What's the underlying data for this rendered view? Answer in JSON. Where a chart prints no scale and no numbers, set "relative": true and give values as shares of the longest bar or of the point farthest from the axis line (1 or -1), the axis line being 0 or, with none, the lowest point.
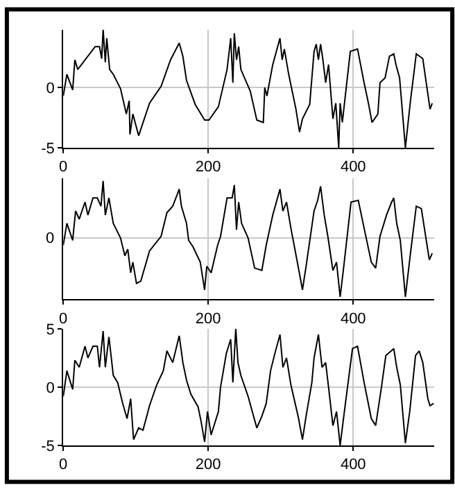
{
  "chart_data": [
    {
      "type": "line",
      "color": "#000000",
      "grid": true,
      "xlim": [
        0,
        512
      ],
      "xticks": [
        0,
        200,
        400
      ],
      "ylim": [
        -5,
        4.8
      ],
      "yticks": [
        -5,
        0
      ],
      "x": [
        0,
        5,
        13,
        16,
        20,
        44,
        50,
        53,
        55,
        58,
        60,
        64,
        69,
        79,
        87,
        91,
        92,
        96,
        104,
        119,
        135,
        148,
        160,
        165,
        170,
        182,
        195,
        201,
        214,
        226,
        231,
        234,
        236,
        239,
        242,
        245,
        258,
        267,
        276,
        278,
        281,
        289,
        299,
        302,
        305,
        311,
        321,
        326,
        330,
        340,
        346,
        349,
        352,
        355,
        358,
        362,
        366,
        372,
        376,
        380,
        382,
        385,
        396,
        406,
        415,
        421,
        426,
        434,
        437,
        444,
        450,
        456,
        459,
        464,
        472,
        479,
        487,
        496,
        506,
        509
      ],
      "values": [
        -0.7,
        1.1,
        -0.2,
        2.3,
        1.5,
        3.4,
        3.4,
        2.4,
        4.8,
        2.1,
        4.1,
        1.5,
        1.1,
        -0.1,
        -2.2,
        -1.1,
        -3.9,
        -2.2,
        -4.0,
        -1.3,
        0.1,
        2.3,
        3.7,
        2.6,
        0.6,
        -1.4,
        -2.7,
        -2.7,
        -1.6,
        1.5,
        4.1,
        0.4,
        4.5,
        2.3,
        3.4,
        1.5,
        -0.3,
        -2.7,
        -2.9,
        0.0,
        -0.7,
        1.9,
        4.1,
        2.3,
        3.2,
        1.1,
        -1.8,
        -3.7,
        -2.6,
        -1.4,
        3.0,
        3.6,
        2.3,
        3.6,
        2.4,
        0.4,
        1.9,
        -2.6,
        -1.3,
        -5.0,
        -1.3,
        -2.9,
        3.0,
        3.2,
        0.4,
        -1.3,
        -2.9,
        -2.2,
        0.4,
        0.8,
        2.6,
        2.8,
        1.9,
        0.8,
        -5.0,
        -1.1,
        2.8,
        2.4,
        -1.8,
        -1.3
      ]
    },
    {
      "type": "line",
      "color": "#000000",
      "grid": "x",
      "relative": true,
      "xlim": [
        0,
        512
      ],
      "xticks": [
        0,
        200,
        400
      ],
      "ref_lines": [
        {
          "axis": "y",
          "value": 0,
          "label": "0",
          "color": "#c8c8c8"
        }
      ],
      "x": [
        0,
        5,
        13,
        17,
        22,
        30,
        34,
        41,
        47,
        52,
        55,
        58,
        63,
        69,
        79,
        85,
        89,
        93,
        96,
        101,
        107,
        119,
        135,
        143,
        151,
        160,
        163,
        170,
        173,
        179,
        189,
        195,
        198,
        204,
        213,
        217,
        226,
        233,
        236,
        239,
        242,
        246,
        255,
        264,
        274,
        280,
        289,
        299,
        303,
        308,
        314,
        324,
        330,
        335,
        346,
        351,
        355,
        360,
        365,
        372,
        377,
        382,
        387,
        397,
        407,
        415,
        425,
        431,
        437,
        446,
        453,
        456,
        460,
        465,
        472,
        479,
        487,
        494,
        505,
        509
      ],
      "values": [
        -0.12,
        0.25,
        -0.04,
        0.46,
        0.32,
        0.61,
        0.39,
        0.68,
        0.68,
        0.54,
        0.97,
        0.39,
        0.68,
        0.25,
        0.0,
        -0.3,
        -0.19,
        -0.59,
        -0.41,
        -0.77,
        -0.73,
        -0.22,
        0.03,
        0.43,
        0.54,
        0.83,
        0.54,
        0.25,
        -0.04,
        -0.15,
        -0.41,
        -0.88,
        -0.48,
        -0.59,
        -0.12,
        0.03,
        0.68,
        0.68,
        0.9,
        0.14,
        0.61,
        0.25,
        0.0,
        -0.51,
        -0.55,
        -0.12,
        0.39,
        0.83,
        0.46,
        0.61,
        0.17,
        -0.48,
        -0.88,
        -0.48,
        0.46,
        0.64,
        0.88,
        0.39,
        0.03,
        -0.55,
        -0.41,
        -1.0,
        -0.48,
        0.61,
        0.64,
        0.17,
        -0.41,
        -0.51,
        0.03,
        0.39,
        0.61,
        0.68,
        0.25,
        -0.04,
        -1.0,
        -0.26,
        0.54,
        0.5,
        -0.37,
        -0.26
      ]
    },
    {
      "type": "line",
      "color": "#000000",
      "grid": true,
      "xlim": [
        0,
        512
      ],
      "xticks": [
        0,
        200,
        400
      ],
      "ylim": [
        -5,
        5
      ],
      "yticks": [
        -5,
        0,
        5
      ],
      "x": [
        0,
        5,
        13,
        16,
        22,
        30,
        34,
        41,
        47,
        50,
        55,
        58,
        63,
        69,
        75,
        82,
        88,
        93,
        97,
        104,
        110,
        119,
        129,
        138,
        143,
        151,
        160,
        165,
        170,
        176,
        186,
        190,
        195,
        199,
        204,
        214,
        217,
        225,
        231,
        234,
        238,
        241,
        245,
        255,
        267,
        274,
        280,
        286,
        292,
        299,
        303,
        308,
        314,
        324,
        330,
        335,
        343,
        346,
        352,
        357,
        362,
        366,
        372,
        377,
        382,
        387,
        399,
        406,
        415,
        425,
        431,
        439,
        445,
        456,
        460,
        465,
        472,
        478,
        486,
        491,
        496,
        503,
        506,
        511
      ],
      "values": [
        -0.8,
        1.4,
        -0.2,
        2.3,
        1.7,
        3.5,
        2.5,
        3.5,
        3.5,
        1.7,
        4.8,
        1.7,
        4.3,
        1.0,
        0.4,
        -1.4,
        -2.7,
        -1.0,
        -4.5,
        -3.5,
        -3.7,
        -1.6,
        0.2,
        1.4,
        3.1,
        2.1,
        4.4,
        2.1,
        0.6,
        -0.6,
        -1.7,
        -2.9,
        -4.7,
        -2.1,
        -4.1,
        -2.1,
        0.0,
        2.9,
        4.1,
        0.4,
        5.0,
        2.1,
        1.0,
        -0.8,
        -3.5,
        -2.5,
        -1.4,
        1.4,
        2.9,
        4.5,
        1.7,
        2.5,
        0.2,
        -2.5,
        -4.5,
        -2.5,
        0.4,
        2.5,
        4.5,
        1.7,
        2.1,
        0.0,
        -3.3,
        -2.1,
        -5.0,
        -2.5,
        3.3,
        3.5,
        0.4,
        -2.7,
        -3.3,
        0.0,
        2.7,
        3.3,
        1.7,
        0.2,
        -4.8,
        -2.1,
        2.7,
        3.1,
        2.1,
        -1.0,
        -1.6,
        -1.4
      ]
    }
  ]
}
